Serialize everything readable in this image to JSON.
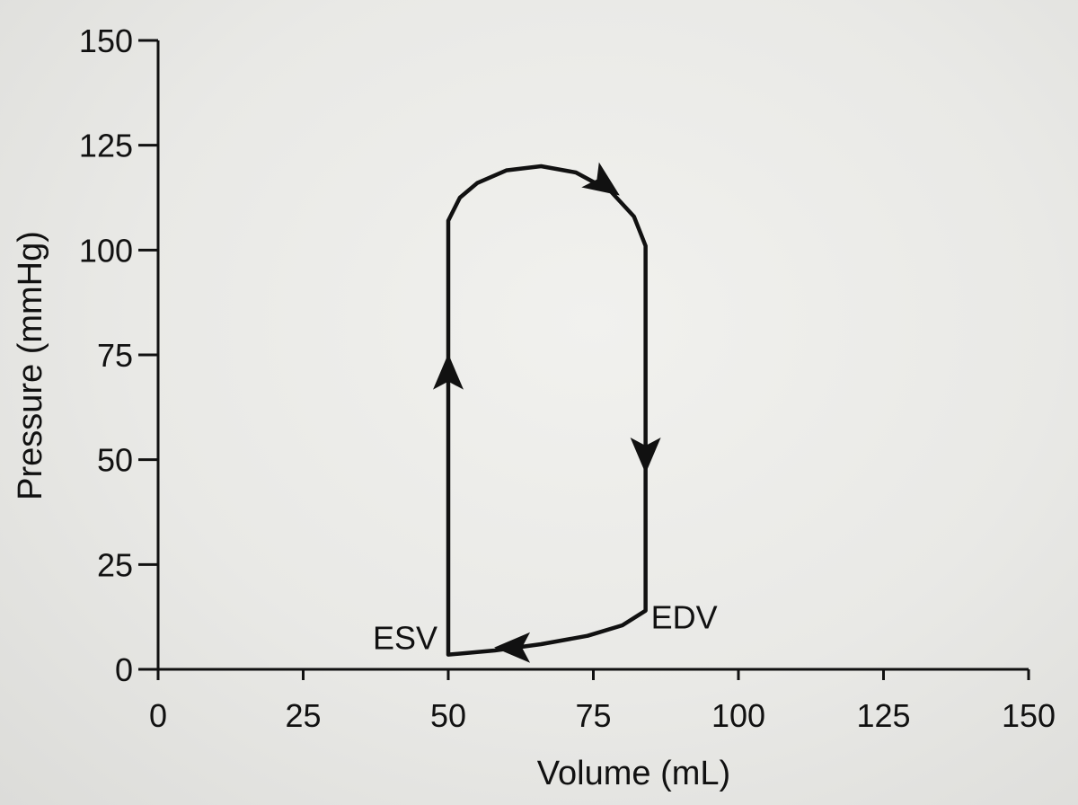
{
  "chart_data": {
    "type": "line",
    "title": "",
    "xlabel": "Volume (mL)",
    "ylabel": "Pressure (mmHg)",
    "xlim": [
      0,
      150
    ],
    "ylim": [
      0,
      150
    ],
    "x_ticks": [
      "0",
      "25",
      "50",
      "75",
      "100",
      "125",
      "150"
    ],
    "y_ticks": [
      "0",
      "25",
      "50",
      "75",
      "100",
      "125",
      "150"
    ],
    "grid": false,
    "legend": "none",
    "series": [
      {
        "points": [
          [
            50,
            3.5
          ],
          [
            58,
            4.5
          ],
          [
            66,
            6
          ],
          [
            74,
            8
          ],
          [
            80,
            10.5
          ],
          [
            84,
            14
          ],
          [
            84,
            40
          ],
          [
            84,
            70
          ],
          [
            84,
            101
          ],
          [
            82,
            108
          ],
          [
            78,
            114
          ],
          [
            72,
            118.5
          ],
          [
            66,
            120
          ],
          [
            60,
            119
          ],
          [
            55,
            116
          ],
          [
            52,
            112.5
          ],
          [
            50,
            107
          ],
          [
            50,
            60
          ],
          [
            50,
            3.5
          ]
        ],
        "color": "#111111"
      }
    ],
    "direction_arrows": [
      {
        "x": 61,
        "y": 5.2,
        "direction": "left"
      },
      {
        "x": 50,
        "y": 71,
        "direction": "up"
      },
      {
        "x": 77,
        "y": 115.5,
        "direction": "down-right"
      },
      {
        "x": 84,
        "y": 51,
        "direction": "down"
      }
    ],
    "annotations": [
      {
        "text": "ESV",
        "x": 50,
        "y": 3.5,
        "position": "left"
      },
      {
        "text": "EDV",
        "x": 84,
        "y": 14,
        "position": "below-right"
      }
    ]
  }
}
